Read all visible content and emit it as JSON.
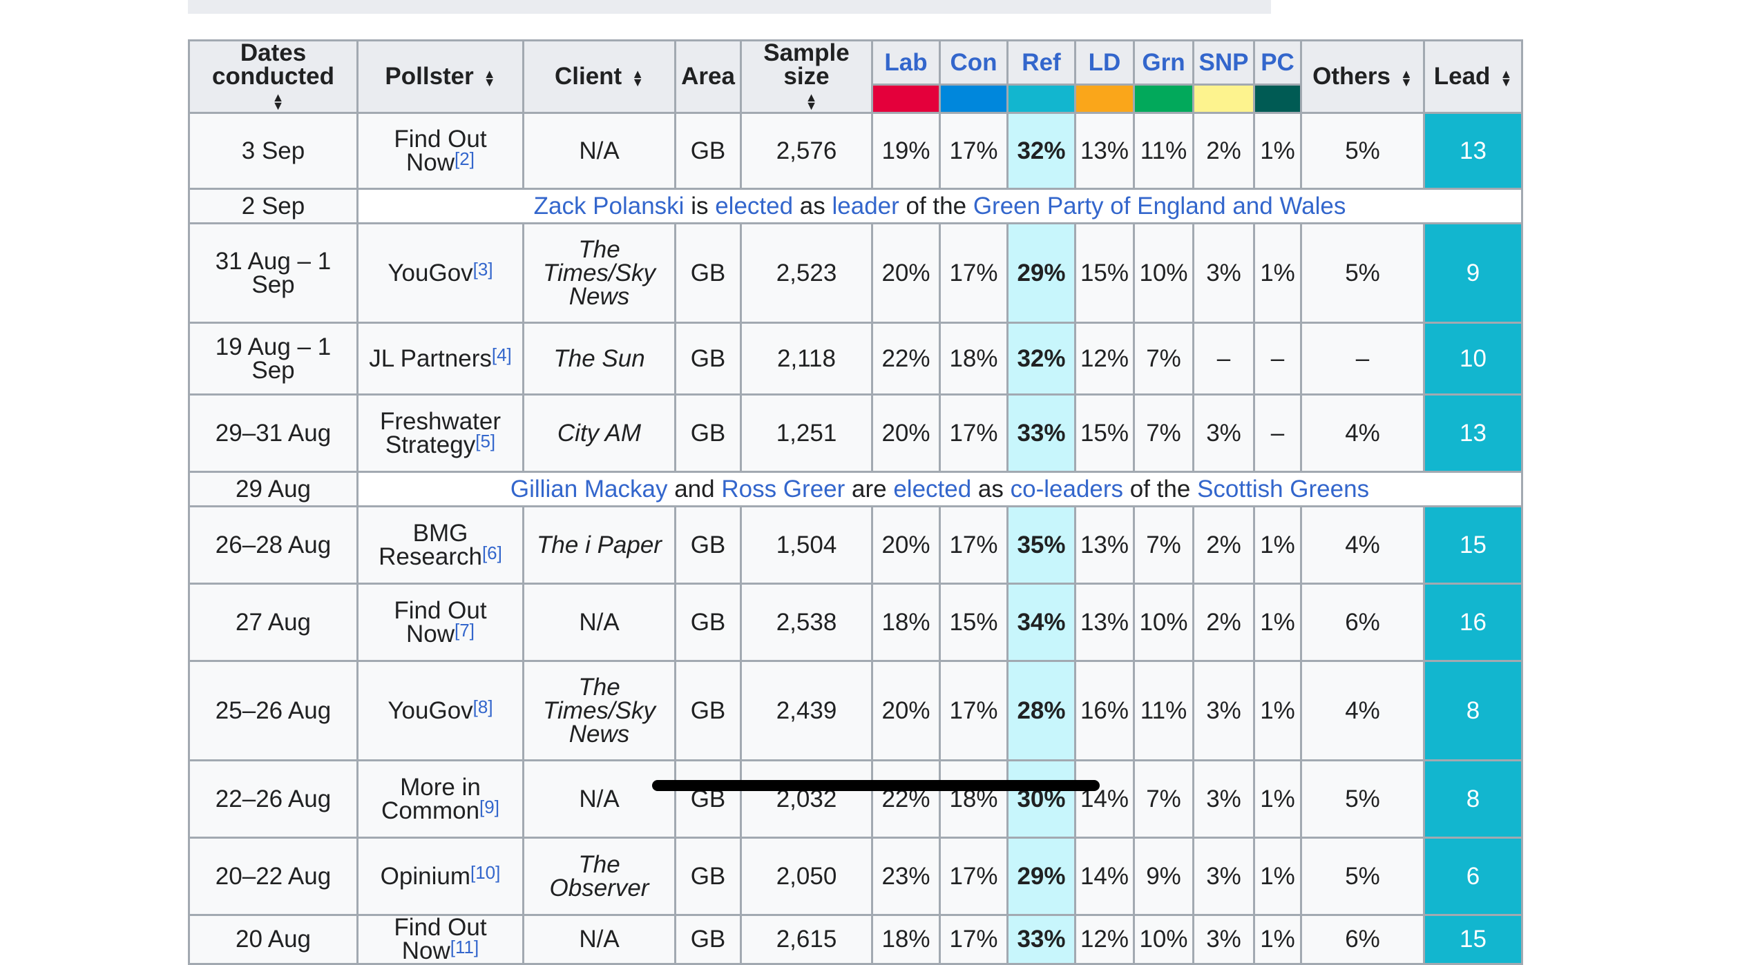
{
  "header": {
    "dates": "Dates conducted",
    "pollster": "Pollster",
    "client": "Client",
    "area": "Area",
    "sample": "Sample size",
    "parties": [
      {
        "label": "Lab",
        "color": "#e4003b"
      },
      {
        "label": "Con",
        "color": "#0087dc"
      },
      {
        "label": "Ref",
        "color": "#12b6cf"
      },
      {
        "label": "LD",
        "color": "#faa61a"
      },
      {
        "label": "Grn",
        "color": "#02a95b"
      },
      {
        "label": "SNP",
        "color": "#fdf38e"
      },
      {
        "label": "PC",
        "color": "#005b54"
      }
    ],
    "others": "Others",
    "lead": "Lead",
    "sort_icon": "sort-arrows-icon"
  },
  "rows": [
    {
      "dates": "3 Sep",
      "pollster": "Find Out Now",
      "ref": "[2]",
      "client": "N/A",
      "client_italic": false,
      "area": "GB",
      "sample": "2,576",
      "lab": "19%",
      "con": "17%",
      "refp": "32%",
      "ld": "13%",
      "grn": "11%",
      "snp": "2%",
      "pc": "1%",
      "oth": "5%",
      "lead": "13"
    },
    {
      "dates": "31 Aug – 1 Sep",
      "pollster": "YouGov",
      "ref": "[3]",
      "client": "The Times/Sky News",
      "client_italic": true,
      "area": "GB",
      "sample": "2,523",
      "lab": "20%",
      "con": "17%",
      "refp": "29%",
      "ld": "15%",
      "grn": "10%",
      "snp": "3%",
      "pc": "1%",
      "oth": "5%",
      "lead": "9"
    },
    {
      "dates": "19 Aug – 1 Sep",
      "pollster": "JL Partners",
      "ref": "[4]",
      "client": "The Sun",
      "client_italic": true,
      "area": "GB",
      "sample": "2,118",
      "lab": "22%",
      "con": "18%",
      "refp": "32%",
      "ld": "12%",
      "grn": "7%",
      "snp": "–",
      "pc": "–",
      "oth": "–",
      "lead": "10"
    },
    {
      "dates": "29–31 Aug",
      "pollster": "Freshwater Strategy",
      "ref": "[5]",
      "client": "City AM",
      "client_italic": true,
      "area": "GB",
      "sample": "1,251",
      "lab": "20%",
      "con": "17%",
      "refp": "33%",
      "ld": "15%",
      "grn": "7%",
      "snp": "3%",
      "pc": "–",
      "oth": "4%",
      "lead": "13"
    },
    {
      "dates": "26–28 Aug",
      "pollster": "BMG Research",
      "ref": "[6]",
      "client": "The i Paper",
      "client_italic": true,
      "area": "GB",
      "sample": "1,504",
      "lab": "20%",
      "con": "17%",
      "refp": "35%",
      "ld": "13%",
      "grn": "7%",
      "snp": "2%",
      "pc": "1%",
      "oth": "4%",
      "lead": "15"
    },
    {
      "dates": "27 Aug",
      "pollster": "Find Out Now",
      "ref": "[7]",
      "client": "N/A",
      "client_italic": false,
      "area": "GB",
      "sample": "2,538",
      "lab": "18%",
      "con": "15%",
      "refp": "34%",
      "ld": "13%",
      "grn": "10%",
      "snp": "2%",
      "pc": "1%",
      "oth": "6%",
      "lead": "16"
    },
    {
      "dates": "25–26 Aug",
      "pollster": "YouGov",
      "ref": "[8]",
      "client": "The Times/Sky News",
      "client_italic": true,
      "area": "GB",
      "sample": "2,439",
      "lab": "20%",
      "con": "17%",
      "refp": "28%",
      "ld": "16%",
      "grn": "11%",
      "snp": "3%",
      "pc": "1%",
      "oth": "4%",
      "lead": "8"
    },
    {
      "dates": "22–26 Aug",
      "pollster": "More in Common",
      "ref": "[9]",
      "client": "N/A",
      "client_italic": false,
      "area": "GB",
      "sample": "2,032",
      "lab": "22%",
      "con": "18%",
      "refp": "30%",
      "ld": "14%",
      "grn": "7%",
      "snp": "3%",
      "pc": "1%",
      "oth": "5%",
      "lead": "8"
    },
    {
      "dates": "20–22 Aug",
      "pollster": "Opinium",
      "ref": "[10]",
      "client": "The Observer",
      "client_italic": true,
      "area": "GB",
      "sample": "2,050",
      "lab": "23%",
      "con": "17%",
      "refp": "29%",
      "ld": "14%",
      "grn": "9%",
      "snp": "3%",
      "pc": "1%",
      "oth": "5%",
      "lead": "6"
    },
    {
      "dates": "20 Aug",
      "pollster": "Find Out Now",
      "ref": "[11]",
      "client": "N/A",
      "client_italic": false,
      "area": "GB",
      "sample": "2,615",
      "lab": "18%",
      "con": "17%",
      "refp": "33%",
      "ld": "12%",
      "grn": "10%",
      "snp": "3%",
      "pc": "1%",
      "oth": "6%",
      "lead": "15"
    }
  ],
  "events": {
    "polanski": {
      "date": "2 Sep",
      "parts": [
        {
          "t": "Zack Polanski",
          "link": true
        },
        {
          "t": " is ",
          "link": false
        },
        {
          "t": "elected",
          "link": true
        },
        {
          "t": " as ",
          "link": false
        },
        {
          "t": "leader",
          "link": true
        },
        {
          "t": " of the ",
          "link": false
        },
        {
          "t": "Green Party of England and Wales",
          "link": true
        }
      ]
    },
    "mackay": {
      "date": "29 Aug",
      "parts": [
        {
          "t": "Gillian Mackay",
          "link": true
        },
        {
          "t": " and ",
          "link": false
        },
        {
          "t": "Ross Greer",
          "link": true
        },
        {
          "t": " are ",
          "link": false
        },
        {
          "t": "elected",
          "link": true
        },
        {
          "t": " as ",
          "link": false
        },
        {
          "t": "co-leaders",
          "link": true
        },
        {
          "t": " of the ",
          "link": false
        },
        {
          "t": "Scottish Greens",
          "link": true
        }
      ]
    }
  }
}
